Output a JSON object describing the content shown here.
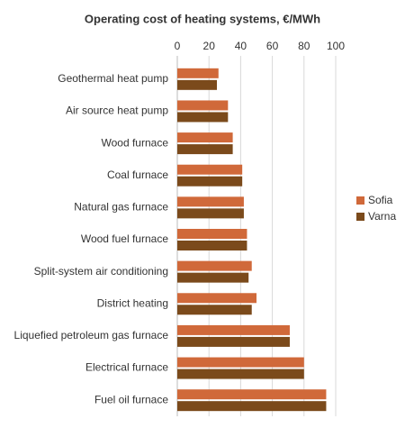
{
  "chart_data": {
    "type": "bar",
    "title": "Operating cost of heating systems, €/MWh",
    "categories": [
      "Geothermal heat pump",
      "Air source heat pump",
      "Wood furnace",
      "Coal furnace",
      "Natural gas furnace",
      "Wood fuel furnace",
      "Split-system air conditioning",
      "District heating",
      "Liquefied petroleum gas furnace",
      "Electrical furnace",
      "Fuel oil furnace"
    ],
    "series": [
      {
        "name": "Sofia",
        "color": "#d0693a",
        "values": [
          26,
          32,
          35,
          41,
          42,
          44,
          47,
          50,
          71,
          80,
          94
        ]
      },
      {
        "name": "Varna",
        "color": "#7b4a1b",
        "values": [
          25,
          32,
          35,
          41,
          42,
          44,
          45,
          47,
          71,
          80,
          94
        ]
      }
    ],
    "xlim": [
      0,
      100
    ],
    "xticks": [
      0,
      20,
      40,
      60,
      80,
      100
    ],
    "grid": true,
    "legend": "right"
  }
}
